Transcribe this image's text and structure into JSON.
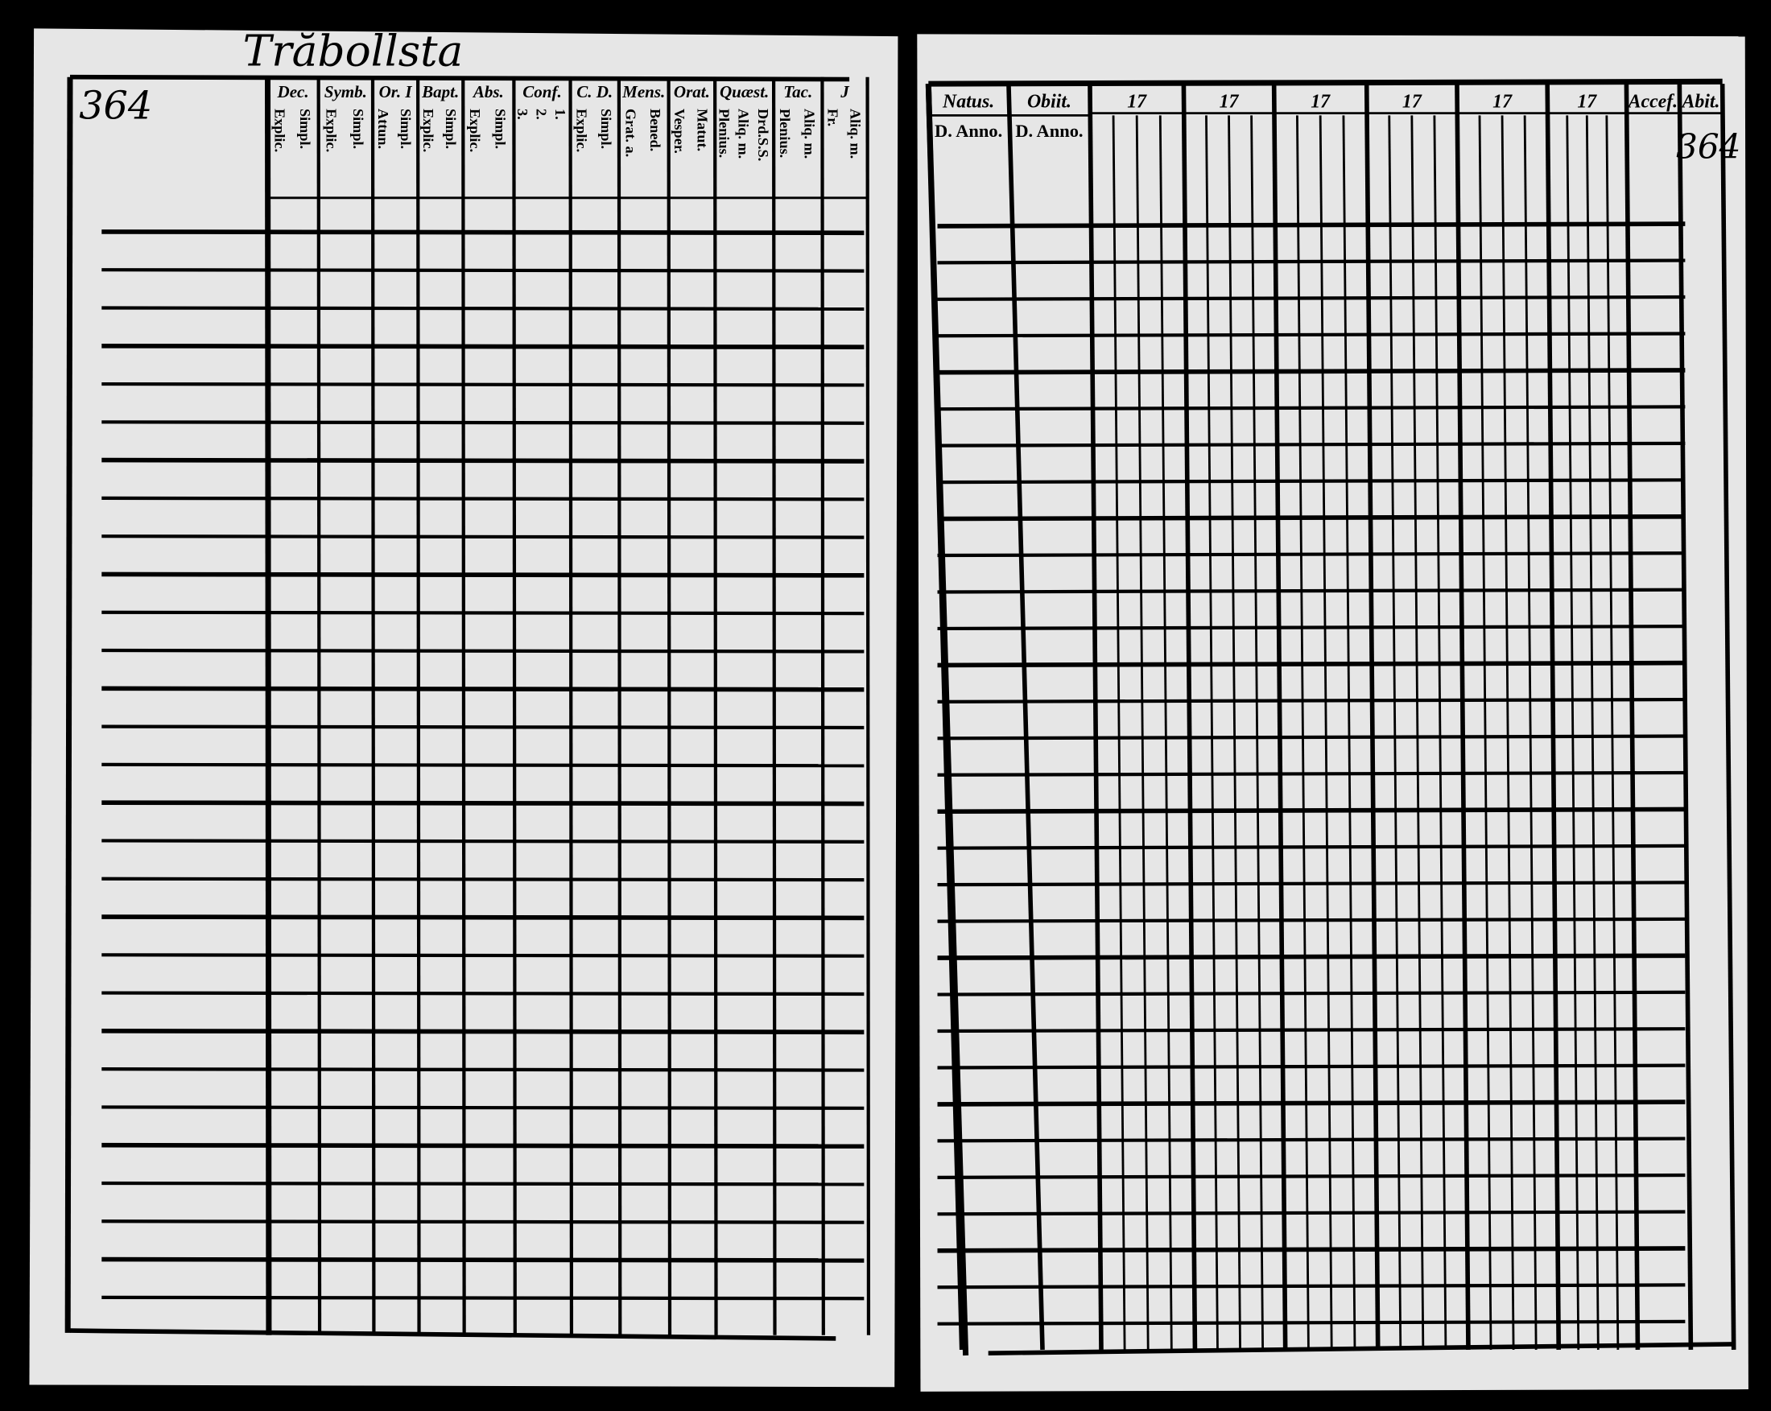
{
  "title": "Trăbollsta",
  "left_page": {
    "page_number": "364",
    "columns": [
      {
        "header": "Dec.",
        "sub": [
          "Explic.",
          "Simpl."
        ]
      },
      {
        "header": "Symb.",
        "sub": [
          "Explic.",
          "Simpl."
        ]
      },
      {
        "header": "Or. I",
        "sub": [
          "Attun.",
          "Simpl."
        ]
      },
      {
        "header": "Bapt.",
        "sub": [
          "Explic.",
          "Simpl."
        ]
      },
      {
        "header": "Abs.",
        "sub": [
          "Explic.",
          "Simpl."
        ]
      },
      {
        "header": "Conf.",
        "sub": [
          "3.",
          "2.",
          "1."
        ]
      },
      {
        "header": "C. D.",
        "sub": [
          "Explic.",
          "Simpl."
        ]
      },
      {
        "header": "Mens.",
        "sub": [
          "Grat. a.",
          "Bened."
        ]
      },
      {
        "header": "Orat.",
        "sub": [
          "Vesper.",
          "Matut."
        ]
      },
      {
        "header": "Quæst.",
        "sub": [
          "Plenius.",
          "Aliq. m.",
          "Drd.S.S."
        ]
      },
      {
        "header": "Tac.",
        "sub": [
          "Plenius.",
          "Aliq. m."
        ]
      },
      {
        "header": "J",
        "sub": [
          "Fr.",
          "Aliq. m."
        ]
      }
    ]
  },
  "right_page": {
    "page_number": "364",
    "columns": [
      {
        "header": "Natus.",
        "sub": [
          "D. Anno."
        ]
      },
      {
        "header": "Obiit.",
        "sub": [
          "D. Anno."
        ]
      },
      {
        "header": "17"
      },
      {
        "header": "17"
      },
      {
        "header": "17"
      },
      {
        "header": "17"
      },
      {
        "header": "17"
      },
      {
        "header": "17"
      },
      {
        "header": "Accef."
      },
      {
        "header": "Abit."
      }
    ]
  }
}
